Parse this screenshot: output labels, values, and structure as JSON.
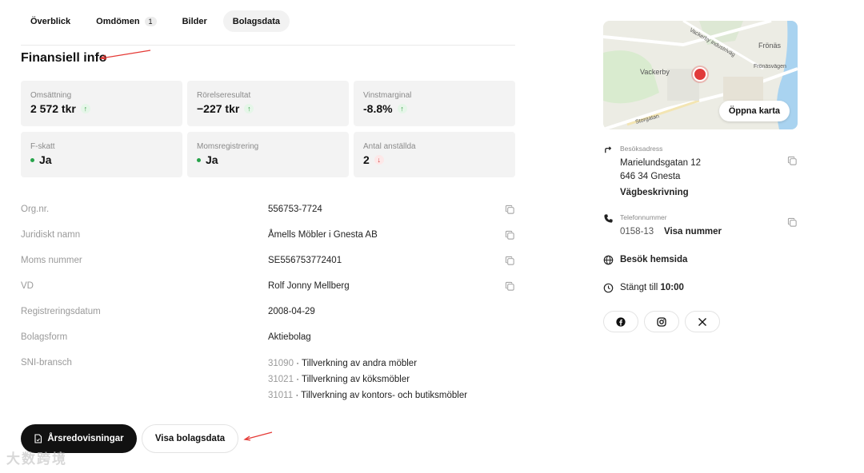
{
  "tabs": [
    {
      "label": "Överblick"
    },
    {
      "label": "Omdömen",
      "count": "1"
    },
    {
      "label": "Bilder"
    },
    {
      "label": "Bolagsdata"
    }
  ],
  "section_title": "Finansiell info",
  "cards": [
    {
      "label": "Omsättning",
      "value": "2 572 tkr",
      "trend": "up"
    },
    {
      "label": "Rörelseresultat",
      "value": "−227 tkr",
      "trend": "up"
    },
    {
      "label": "Vinstmarginal",
      "value": "-8.8%",
      "trend": "up"
    },
    {
      "label": "F-skatt",
      "value": "Ja",
      "status": "green"
    },
    {
      "label": "Momsregistrering",
      "value": "Ja",
      "status": "green"
    },
    {
      "label": "Antal anställda",
      "value": "2",
      "trend": "down"
    }
  ],
  "info_rows": [
    {
      "key": "Org.nr.",
      "value": "556753-7724",
      "copy": true
    },
    {
      "key": "Juridiskt namn",
      "value": "Åmells Möbler i Gnesta AB",
      "copy": true
    },
    {
      "key": "Moms nummer",
      "value": "SE556753772401",
      "copy": true
    },
    {
      "key": "VD",
      "value": "Rolf Jonny Mellberg",
      "copy": true
    },
    {
      "key": "Registreringsdatum",
      "value": "2008-04-29",
      "copy": false
    },
    {
      "key": "Bolagsform",
      "value": "Aktiebolag",
      "copy": false
    },
    {
      "key": "SNI-bransch",
      "value": "",
      "copy": false
    }
  ],
  "sni": [
    {
      "code": "31090",
      "text": " · Tillverkning av andra möbler"
    },
    {
      "code": "31021",
      "text": " · Tillverkning av köksmöbler"
    },
    {
      "code": "31011",
      "text": " · Tillverkning av kontors- och butiksmöbler"
    }
  ],
  "buttons": {
    "annual_reports": "Årsredovisningar",
    "show_company_data": "Visa bolagsdata"
  },
  "map": {
    "open_label": "Öppna karta",
    "labels": {
      "vackerby": "Vackerby",
      "fronas": "Frönäs",
      "fronasvagen": "Frönäsvägen",
      "industrivag": "Vackerby industriväg",
      "storgatan": "Storgatan"
    }
  },
  "contact": {
    "address_label": "Besöksadress",
    "address_line1": "Marielundsgatan 12",
    "address_line2": "646 34 Gnesta",
    "directions": "Vägbeskrivning",
    "phone_label": "Telefonnummer",
    "phone_partial": "0158-13",
    "phone_show": "Visa nummer",
    "website": "Besök hemsida",
    "hours_prefix": "Stängt till ",
    "hours_time": "10:00"
  },
  "watermark": "大数跨境",
  "colors": {
    "accent_dark": "#111111",
    "pin": "#e13a3a",
    "green": "#27a34a",
    "red": "#d13b3b"
  }
}
